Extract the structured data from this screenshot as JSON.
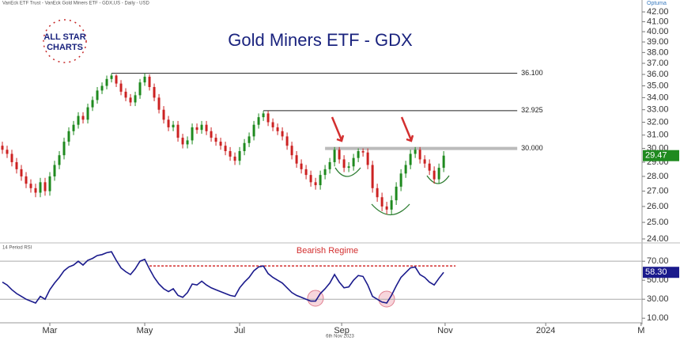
{
  "header": {
    "caption": "VanEck ETF Trust - VanEck Gold Miners ETF - GDX,US - Daily - USD",
    "brand": "Optuma",
    "logo": [
      "ALL STAR",
      "CHARTS"
    ],
    "footer": "6th Nov 2023"
  },
  "chart_data": [
    {
      "type": "candlestick",
      "title": "Gold Miners ETF - GDX",
      "log_scale": true,
      "up_color": "#1f8a1f",
      "down_color": "#cc2222",
      "xlim": [
        -0.5,
        134.8
      ],
      "ylim": [
        23.86,
        42.58
      ],
      "yticks": [
        {
          "value": 24,
          "label": "24.00"
        },
        {
          "value": 25,
          "label": "25.00"
        },
        {
          "value": 26,
          "label": "26.00"
        },
        {
          "value": 27,
          "label": "27.00"
        },
        {
          "value": 28,
          "label": "28.00"
        },
        {
          "value": 29,
          "label": "29.00"
        },
        {
          "value": 30,
          "label": "30.00"
        },
        {
          "value": 31,
          "label": "31.00"
        },
        {
          "value": 32,
          "label": "32.00"
        },
        {
          "value": 33,
          "label": "33.00"
        },
        {
          "value": 34,
          "label": "34.00"
        },
        {
          "value": 35,
          "label": "35.00"
        },
        {
          "value": 36,
          "label": "36.00"
        },
        {
          "value": 37,
          "label": "37.00"
        },
        {
          "value": 38,
          "label": "38.00"
        },
        {
          "value": 39,
          "label": "39.00"
        },
        {
          "value": 40,
          "label": "40.00"
        },
        {
          "value": 41,
          "label": "41.00"
        },
        {
          "value": 42,
          "label": "42.00"
        }
      ],
      "open": [
        30.2,
        29.9,
        29.6,
        29.0,
        28.5,
        28.0,
        27.5,
        27.2,
        26.9,
        27.6,
        27.0,
        28.0,
        28.8,
        29.5,
        30.5,
        31.3,
        31.8,
        32.5,
        32.2,
        33.2,
        33.8,
        34.6,
        35.0,
        35.6,
        35.9,
        35.2,
        34.5,
        34.0,
        33.6,
        34.2,
        35.3,
        35.8,
        34.9,
        34.0,
        33.0,
        32.2,
        31.6,
        31.8,
        30.8,
        30.3,
        30.6,
        31.6,
        31.4,
        31.8,
        31.3,
        30.8,
        30.5,
        30.2,
        29.8,
        29.4,
        29.1,
        29.8,
        30.4,
        30.9,
        31.8,
        32.4,
        32.7,
        32.0,
        31.6,
        31.3,
        30.9,
        30.2,
        29.5,
        28.9,
        28.5,
        28.1,
        27.6,
        27.4,
        28.1,
        28.5,
        29.0,
        29.9,
        29.2,
        28.6,
        28.7,
        29.3,
        29.8,
        29.7,
        28.8,
        27.2,
        26.6,
        26.0,
        25.8,
        26.4,
        27.3,
        28.2,
        28.8,
        29.6,
        29.9,
        29.2,
        28.9,
        28.4,
        27.8,
        28.6
      ],
      "high": [
        30.5,
        30.2,
        29.9,
        29.3,
        28.8,
        28.3,
        27.8,
        27.5,
        27.9,
        27.9,
        28.3,
        29.1,
        29.8,
        30.8,
        31.6,
        32.1,
        32.8,
        32.8,
        33.5,
        34.1,
        34.9,
        35.3,
        35.9,
        36.1,
        36.0,
        35.5,
        34.8,
        34.3,
        34.5,
        35.6,
        36.1,
        36.0,
        35.2,
        34.3,
        33.3,
        32.5,
        32.1,
        32.1,
        31.1,
        30.9,
        31.9,
        31.9,
        32.1,
        32.1,
        31.6,
        31.1,
        30.8,
        30.5,
        30.1,
        29.7,
        30.1,
        30.7,
        31.2,
        32.1,
        32.7,
        32.9,
        32.9,
        32.3,
        31.9,
        31.6,
        31.2,
        30.5,
        29.8,
        29.2,
        28.8,
        28.4,
        27.9,
        28.4,
        28.8,
        29.3,
        30.1,
        30.1,
        29.5,
        29.0,
        29.6,
        30.0,
        30.0,
        30.0,
        29.1,
        27.5,
        26.9,
        26.3,
        26.7,
        27.6,
        28.5,
        29.1,
        29.9,
        30.1,
        30.1,
        29.5,
        29.2,
        28.7,
        28.9,
        29.8
      ],
      "low": [
        29.6,
        29.3,
        28.7,
        28.2,
        27.7,
        27.2,
        26.9,
        26.6,
        26.6,
        26.7,
        26.7,
        27.7,
        28.5,
        29.2,
        30.2,
        31.0,
        31.5,
        31.9,
        31.9,
        32.9,
        33.5,
        34.3,
        34.7,
        35.3,
        34.9,
        34.2,
        33.7,
        33.3,
        33.3,
        33.9,
        35.0,
        34.6,
        33.7,
        32.7,
        31.9,
        31.3,
        31.3,
        30.5,
        30.0,
        30.0,
        30.3,
        31.1,
        31.1,
        31.0,
        30.5,
        30.2,
        29.9,
        29.5,
        29.1,
        28.8,
        28.8,
        29.5,
        30.1,
        30.6,
        31.5,
        32.1,
        31.7,
        31.3,
        31.0,
        30.6,
        29.9,
        29.2,
        28.6,
        28.2,
        27.8,
        27.3,
        27.1,
        27.1,
        27.8,
        28.2,
        28.7,
        28.9,
        28.3,
        28.3,
        28.4,
        29.0,
        29.4,
        28.5,
        26.9,
        26.3,
        25.7,
        25.5,
        25.5,
        26.1,
        27.0,
        27.9,
        28.5,
        29.3,
        28.9,
        28.6,
        28.1,
        27.5,
        27.5,
        28.3
      ],
      "close": [
        29.9,
        29.6,
        29.0,
        28.5,
        28.0,
        27.5,
        27.2,
        26.9,
        27.6,
        27.0,
        28.0,
        28.8,
        29.5,
        30.5,
        31.3,
        31.8,
        32.5,
        32.2,
        33.2,
        33.8,
        34.6,
        35.0,
        35.6,
        35.9,
        35.2,
        34.5,
        34.0,
        33.6,
        34.2,
        35.3,
        35.8,
        34.9,
        34.0,
        33.0,
        32.2,
        31.6,
        31.8,
        30.8,
        30.3,
        30.6,
        31.6,
        31.4,
        31.8,
        31.3,
        30.8,
        30.5,
        30.2,
        29.8,
        29.4,
        29.1,
        29.8,
        30.4,
        30.9,
        31.8,
        32.4,
        32.7,
        32.0,
        31.6,
        31.3,
        30.9,
        30.2,
        29.5,
        28.9,
        28.5,
        28.1,
        27.6,
        27.4,
        28.1,
        28.5,
        29.0,
        29.9,
        29.2,
        28.6,
        28.7,
        29.3,
        29.8,
        29.7,
        28.8,
        27.2,
        26.6,
        26.0,
        25.8,
        26.4,
        27.3,
        28.2,
        28.8,
        29.6,
        29.9,
        29.2,
        28.9,
        28.4,
        27.8,
        28.6,
        29.47
      ],
      "levels": [
        {
          "value": 36.1,
          "label": "36.100",
          "start": 23,
          "end": 108.5,
          "color": "#222222"
        },
        {
          "value": 32.925,
          "label": "32.925",
          "start": 55,
          "end": 108.5,
          "color": "#222222"
        },
        {
          "value": 30,
          "label": "30.000",
          "start": 68,
          "end": 108.5,
          "color": "#bbbbbb"
        }
      ],
      "last_color": "#1f8a1f"
    },
    {
      "type": "line",
      "title": "14 Period RSI",
      "annotation": "Bearish Regime",
      "color": "#1a1a8c",
      "xlim": [
        -0.5,
        134.8
      ],
      "ylim": [
        6,
        86.8
      ],
      "yticks": [
        {
          "value": 10,
          "label": "10.00"
        },
        {
          "value": 30,
          "label": "30.00"
        },
        {
          "value": 50,
          "label": "50.00"
        },
        {
          "value": 70,
          "label": "70.00"
        }
      ],
      "xticks": [
        {
          "value": 10,
          "label": "Mar"
        },
        {
          "value": 30,
          "label": "May"
        },
        {
          "value": 50,
          "label": "Jul"
        },
        {
          "value": 71.5,
          "label": "Sep"
        },
        {
          "value": 93.3,
          "label": "Nov"
        },
        {
          "value": 114.5,
          "label": "2024"
        },
        {
          "value": 134.6,
          "label": "M"
        }
      ],
      "bands": [
        70,
        30
      ],
      "regime_level": 65,
      "regime_start": 31,
      "regime_end": 95.5,
      "values": [
        48,
        45,
        40,
        36,
        33,
        30,
        28,
        26,
        33,
        30,
        40,
        47,
        53,
        60,
        64,
        66,
        70,
        66,
        71,
        73,
        76,
        77,
        79,
        80,
        71,
        63,
        59,
        56,
        62,
        70,
        72,
        62,
        53,
        46,
        41,
        38,
        41,
        34,
        32,
        37,
        46,
        45,
        49,
        45,
        42,
        40,
        38,
        36,
        34,
        33,
        42,
        48,
        53,
        60,
        64,
        65,
        57,
        53,
        50,
        47,
        42,
        37,
        34,
        32,
        30,
        28,
        28,
        36,
        41,
        47,
        56,
        48,
        42,
        43,
        50,
        55,
        54,
        45,
        33,
        30,
        27,
        26,
        34,
        44,
        53,
        58,
        63,
        64,
        56,
        53,
        48,
        45,
        52,
        58.3
      ],
      "value_labels": {
        "93": "58.30"
      }
    }
  ]
}
